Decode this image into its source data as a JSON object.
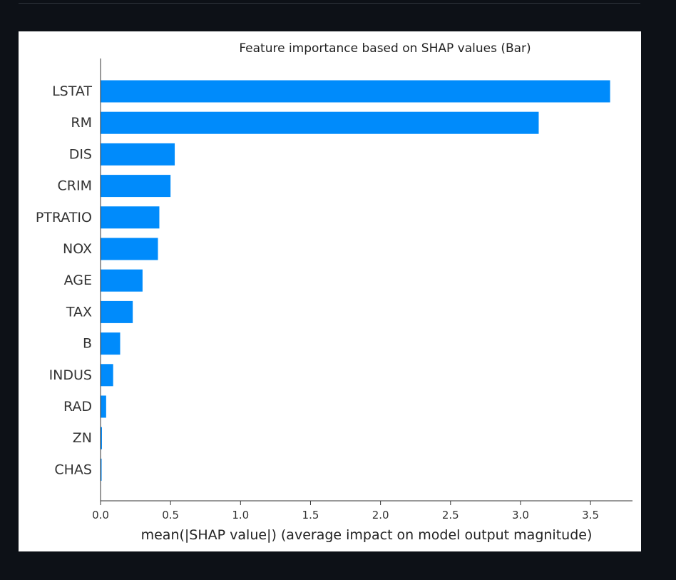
{
  "chart_data": {
    "type": "bar",
    "orientation": "horizontal",
    "title": "Feature importance based on SHAP values (Bar)",
    "xlabel": "mean(|SHAP value|) (average impact on model output magnitude)",
    "ylabel": "",
    "xlim": [
      0,
      3.8
    ],
    "xticks": [
      "0.0",
      "0.5",
      "1.0",
      "1.5",
      "2.0",
      "2.5",
      "3.0",
      "3.5"
    ],
    "categories": [
      "LSTAT",
      "RM",
      "DIS",
      "CRIM",
      "PTRATIO",
      "NOX",
      "AGE",
      "TAX",
      "B",
      "INDUS",
      "RAD",
      "ZN",
      "CHAS"
    ],
    "values": [
      3.64,
      3.13,
      0.53,
      0.5,
      0.42,
      0.41,
      0.3,
      0.23,
      0.14,
      0.09,
      0.04,
      0.01,
      0.005
    ],
    "bar_color": "#008bfb",
    "grid": false
  }
}
